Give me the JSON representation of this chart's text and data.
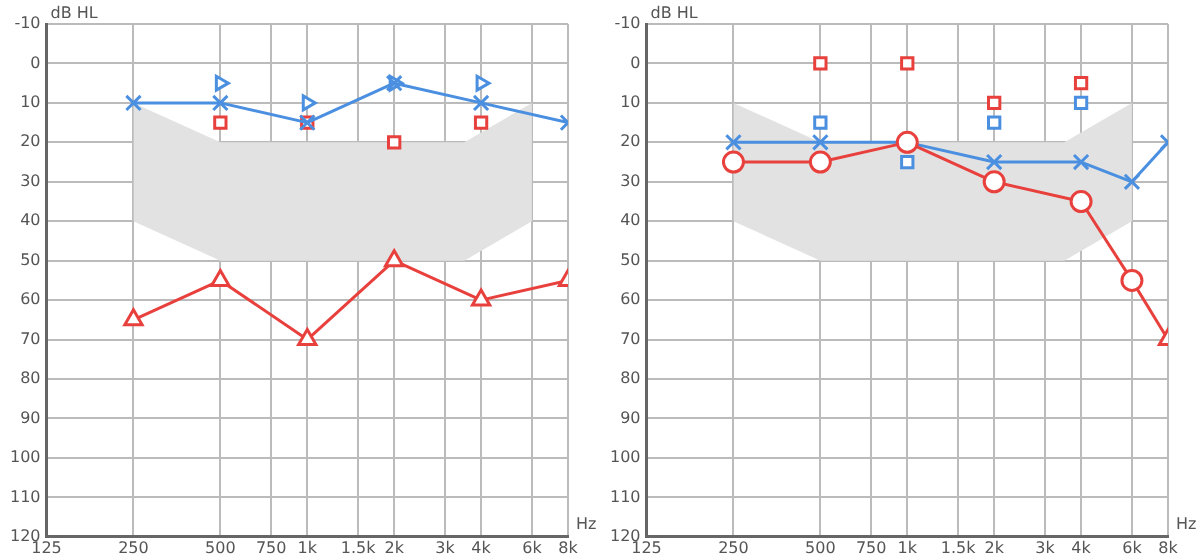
{
  "chart_data": [
    {
      "type": "line",
      "xlabel": "Hz",
      "ylabel": "dB HL",
      "log": "x",
      "grid": true,
      "xlim": [
        125,
        8000
      ],
      "ylim": [
        120,
        -10
      ],
      "xticks": [
        125,
        250,
        500,
        750,
        {
          "value": 1000,
          "label": "1k"
        },
        {
          "value": 1500,
          "label": "1.5k"
        },
        {
          "value": 2000,
          "label": "2k"
        },
        {
          "value": 3000,
          "label": "3k"
        },
        {
          "value": 4000,
          "label": "4k"
        },
        {
          "value": 6000,
          "label": "6k"
        },
        {
          "value": 8000,
          "label": "8k"
        }
      ],
      "yticks": [
        -10,
        0,
        10,
        20,
        30,
        40,
        50,
        60,
        70,
        80,
        90,
        100,
        110,
        120
      ],
      "series": [
        {
          "type": "line",
          "color": "#e2e2e2",
          "x": [
            250,
            500,
            3500,
            6000
          ],
          "values": [
            null,
            null,
            null,
            null
          ],
          "lower": [
            40,
            50,
            50,
            40
          ],
          "upper": [
            10,
            20,
            20,
            10
          ]
        },
        {
          "type": "line",
          "color": "#4a8fe0",
          "marker": "cross",
          "x": [
            250,
            500,
            1000,
            2000,
            4000,
            8000
          ],
          "values": [
            10,
            10,
            15,
            5,
            10,
            15
          ]
        },
        {
          "type": "line",
          "color": "#e8403c",
          "marker": "triangle",
          "x": [
            250,
            500,
            1000,
            2000,
            4000,
            8000
          ],
          "values": [
            65,
            55,
            70,
            50,
            60,
            55
          ]
        },
        {
          "type": "scatter",
          "color": "#4a8fe0",
          "marker": "triangle",
          "x": [
            500,
            1000,
            2000,
            4000
          ],
          "values": [
            5,
            10,
            5,
            5
          ]
        },
        {
          "type": "scatter",
          "color": "#e8403c",
          "marker": "square",
          "x": [
            500,
            1000,
            2000,
            4000
          ],
          "values": [
            15,
            15,
            20,
            15
          ]
        }
      ]
    },
    {
      "type": "line",
      "xlabel": "Hz",
      "ylabel": "dB HL",
      "log": "x",
      "grid": true,
      "xlim": [
        125,
        8000
      ],
      "ylim": [
        120,
        -10
      ],
      "xticks": [
        125,
        250,
        500,
        750,
        {
          "value": 1000,
          "label": "1k"
        },
        {
          "value": 1500,
          "label": "1.5k"
        },
        {
          "value": 2000,
          "label": "2k"
        },
        {
          "value": 3000,
          "label": "3k"
        },
        {
          "value": 4000,
          "label": "4k"
        },
        {
          "value": 6000,
          "label": "6k"
        },
        {
          "value": 8000,
          "label": "8k"
        }
      ],
      "yticks": [
        -10,
        0,
        10,
        20,
        30,
        40,
        50,
        60,
        70,
        80,
        90,
        100,
        110,
        120
      ],
      "series": [
        {
          "type": "line",
          "color": "#e2e2e2",
          "x": [
            250,
            500,
            3500,
            6000
          ],
          "values": [
            null,
            null,
            null,
            null
          ],
          "lower": [
            40,
            50,
            50,
            40
          ],
          "upper": [
            10,
            20,
            20,
            10
          ]
        },
        {
          "type": "line",
          "color": "#e8403c",
          "marker": [
            "circle",
            "circle",
            "circle",
            "circle",
            "circle",
            "circle",
            "triangle"
          ],
          "x": [
            250,
            500,
            1000,
            2000,
            4000,
            6000,
            8000
          ],
          "values": [
            25,
            25,
            20,
            30,
            35,
            55,
            70
          ]
        },
        {
          "type": "line",
          "color": "#4a8fe0",
          "marker": "cross",
          "x": [
            250,
            500,
            1000,
            2000,
            4000,
            6000,
            8000
          ],
          "values": [
            20,
            20,
            20,
            25,
            25,
            30,
            20
          ]
        },
        {
          "type": "scatter",
          "color": "#4a8fe0",
          "marker": "square",
          "x": [
            500,
            1000,
            2000,
            4000
          ],
          "values": [
            15,
            25,
            15,
            10
          ]
        },
        {
          "type": "scatter",
          "color": "#e8403c",
          "marker": "square",
          "x": [
            500,
            1000,
            2000,
            4000
          ],
          "values": [
            0,
            0,
            10,
            5
          ]
        }
      ]
    }
  ]
}
